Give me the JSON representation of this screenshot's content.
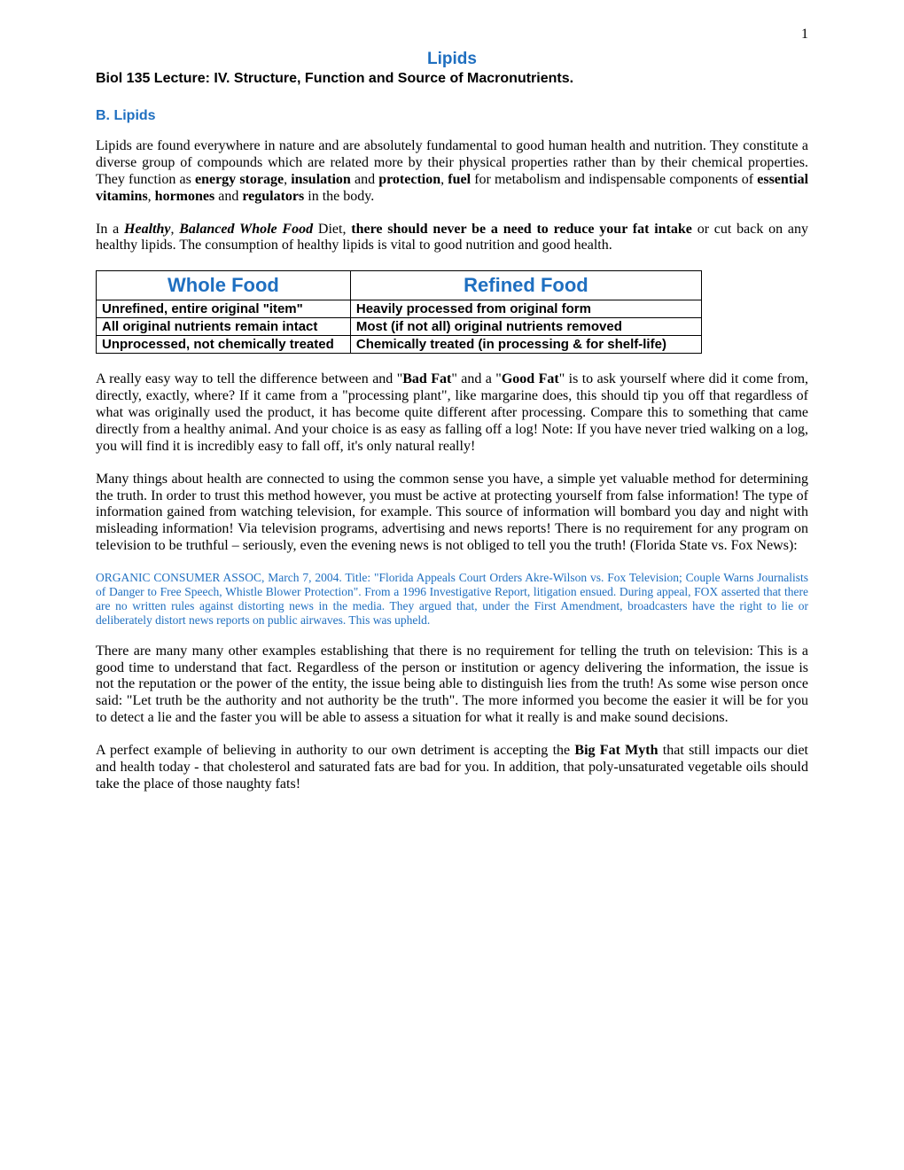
{
  "page_number": "1",
  "title": "Lipids",
  "subtitle": "Biol 135 Lecture: IV. Structure, Function and Source of Macronutrients.",
  "section_heading": "B. Lipids",
  "paragraph1": {
    "t1": "Lipids are found everywhere in nature and are absolutely fundamental to good human health and nutrition. They constitute a diverse group of compounds which are related more by their physical properties rather than by their chemical properties. They function as ",
    "b1": "energy storage",
    "t2": ", ",
    "b2": "insulation",
    "t3": " and ",
    "b3": "protection",
    "t4": ", ",
    "b4": "fuel",
    "t5": " for metabolism and indispensable components of ",
    "b5": "essential vitamins",
    "t6": ", ",
    "b6": "hormones",
    "t7": " and ",
    "b7": "regulators",
    "t8": " in the body."
  },
  "paragraph2": {
    "t1": "In a ",
    "bi1": "Healthy",
    "t2": ", ",
    "bi2": "Balanced Whole Food",
    "t3": " Diet, ",
    "b1": "there should never be a need to reduce your fat intake",
    "t4": " or cut back on any healthy lipids. The consumption of healthy lipids is vital to good nutrition and good health."
  },
  "table": {
    "header_left": "Whole Food",
    "header_right": "Refined Food",
    "rows": [
      {
        "left": "Unrefined, entire original \"item\"",
        "right": "Heavily processed from original form"
      },
      {
        "left": "All original nutrients remain intact",
        "right": "Most (if not all) original nutrients removed"
      },
      {
        "left": "Unprocessed, not chemically treated",
        "right": "Chemically treated (in processing & for shelf-life)"
      }
    ]
  },
  "paragraph3": {
    "t1": "A really easy way to tell the difference between and \"",
    "b1": "Bad Fat",
    "t2": "\" and a \"",
    "b2": "Good Fat",
    "t3": "\" is to ask yourself where did it come from, directly, exactly, where? If it came from a \"processing plant\", like margarine does, this should tip you off that regardless of what was originally used the product, it has become quite different after processing. Compare this to something that came directly from a healthy animal. And your choice is as easy as falling off a log! Note: If you have never tried walking on a log, you will find it is incredibly easy to fall off, it's only natural really!"
  },
  "paragraph4": "Many things about health are connected to using the common sense you have, a simple yet valuable method for determining the truth. In order to trust this method however, you must be active at protecting yourself from false information! The type of information gained from watching television, for example. This source of information will bombard you day and night with misleading information! Via television programs, advertising and news reports! There is no requirement for any program on television to be truthful – seriously, even the evening news is not obliged to tell you the truth! (Florida State vs. Fox News):",
  "citation": "ORGANIC CONSUMER ASSOC, March 7, 2004. Title: \"Florida Appeals Court Orders Akre-Wilson vs. Fox Television; Couple Warns Journalists of Danger to Free Speech, Whistle Blower Protection\". From a 1996 Investigative Report, litigation ensued. During appeal, FOX asserted that there are no written rules against distorting news in the media. They argued that, under the First Amendment, broadcasters have the right to lie or deliberately distort news reports on public airwaves. This was upheld.",
  "paragraph5": "There are many many other examples establishing that there is no requirement for telling the truth on television: This is a good time to understand that fact. Regardless of the person or institution or agency delivering the information, the issue is not the reputation or the power of the entity, the issue being able to distinguish lies from the truth! As some wise person once said: \"Let truth be the authority and not authority be the truth\". The more informed you become the easier it will be for you to detect a lie and the faster you will be able to assess a situation for what it really is and make sound decisions.",
  "paragraph6": {
    "t1": "A perfect example of believing in authority to our own detriment is accepting the ",
    "b1": "Big Fat Myth",
    "t2": " that still impacts our diet and health today - that cholesterol and saturated fats are bad for you. In addition, that poly-unsaturated vegetable oils should take the place of those naughty fats!"
  },
  "colors": {
    "accent": "#1f6fc0",
    "text": "#000000",
    "background": "#ffffff"
  }
}
